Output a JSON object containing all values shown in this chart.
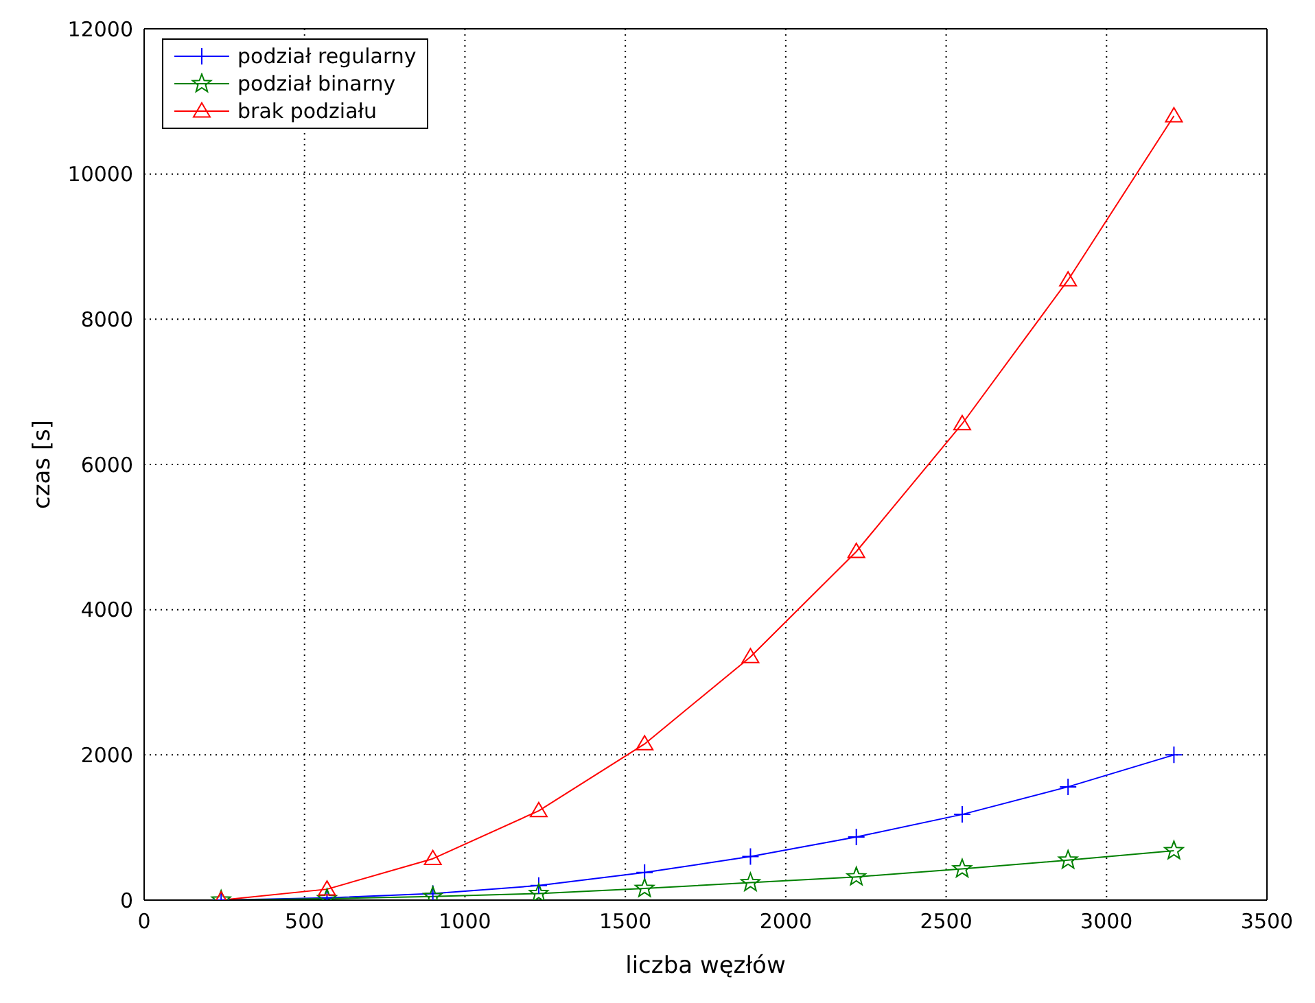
{
  "chart_data": {
    "type": "line",
    "xlabel": "liczba węzłów",
    "ylabel": "czas [s]",
    "x": [
      240,
      570,
      900,
      1230,
      1560,
      1890,
      2220,
      2550,
      2880,
      3210
    ],
    "series": [
      {
        "name": "podział regularny",
        "color": "#0000ff",
        "marker": "cross",
        "values": [
          0,
          30,
          90,
          200,
          380,
          600,
          870,
          1180,
          1560,
          2000
        ]
      },
      {
        "name": "podział binarny",
        "color": "#008000",
        "marker": "star",
        "values": [
          0,
          20,
          50,
          90,
          160,
          240,
          320,
          430,
          550,
          680
        ]
      },
      {
        "name": "brak podziału",
        "color": "#ff0000",
        "marker": "triangle",
        "values": [
          0,
          150,
          570,
          1230,
          2150,
          3350,
          4800,
          6560,
          8540,
          10800
        ]
      }
    ],
    "xlim": [
      0,
      3500
    ],
    "xticks": [
      0,
      500,
      1000,
      1500,
      2000,
      2500,
      3000,
      3500
    ],
    "ylim": [
      0,
      12000
    ],
    "yticks": [
      0,
      2000,
      4000,
      6000,
      8000,
      10000,
      12000
    ],
    "grid": true,
    "legend": "top left",
    "line_style": "solid"
  }
}
